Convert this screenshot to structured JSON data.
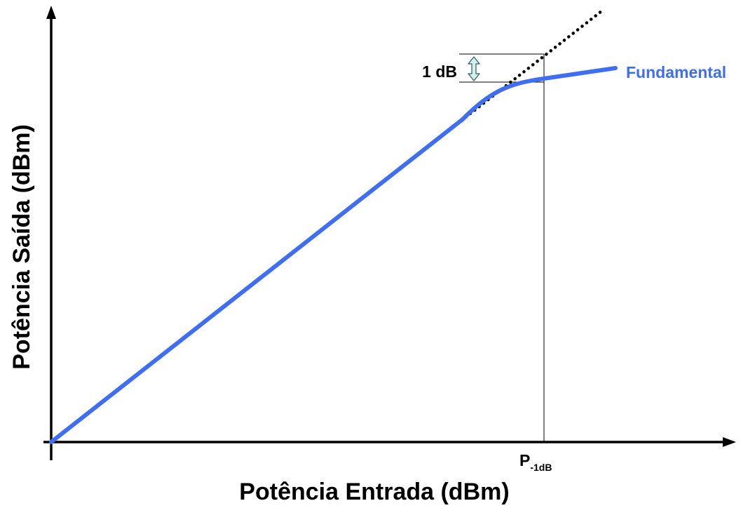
{
  "diagram": {
    "xlabel": "Potência Entrada (dBm)",
    "ylabel": "Potência Saída (dBm)",
    "delta_label": "1 dB",
    "marker_label": {
      "main": "P",
      "sub": "-1dB"
    },
    "series_label": "Fundamental",
    "colors": {
      "curve": "#3f6ef2",
      "axes": "#000000",
      "series_label": "#3f6ef2",
      "arrow_fill": "#cfeff0",
      "arrow_stroke": "#355a5e"
    }
  }
}
